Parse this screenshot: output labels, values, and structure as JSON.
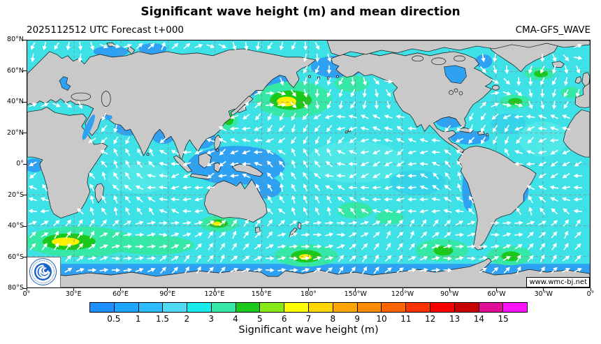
{
  "header": {
    "title": "Significant wave height (m) and mean direction",
    "forecast_label": "2025112512 UTC Forecast t+000",
    "model_label": "CMA-GFS_WAVE"
  },
  "map": {
    "lat_ticks": [
      "80°N",
      "60°N",
      "40°N",
      "20°N",
      "0°",
      "20°S",
      "40°S",
      "60°S",
      "80°S"
    ],
    "lon_ticks": [
      "0°",
      "30°E",
      "60°E",
      "90°E",
      "120°E",
      "150°E",
      "180°",
      "150°W",
      "120°W",
      "90°W",
      "60°W",
      "30°W",
      "0°"
    ],
    "watermark": "www.wmc-bj.net",
    "logo": "CMA China Meteorological Administration emblem",
    "land_color": "#c9c9c9",
    "ocean_base_color": "#3ee2e6",
    "gridline_style": "dashed gray every 20° lat / 30° lon",
    "arrow_meaning": "white arrows = mean wave direction"
  },
  "colorbar": {
    "label": "Significant wave height (m)",
    "ticks": [
      "0.5",
      "1",
      "1.5",
      "2",
      "3",
      "4",
      "5",
      "6",
      "7",
      "8",
      "9",
      "10",
      "11",
      "12",
      "13",
      "14",
      "15"
    ],
    "colors": [
      "#1e90ff",
      "#1ea5ff",
      "#2dbdff",
      "#4fd9f2",
      "#17ebeb",
      "#35e8a6",
      "#1dc81d",
      "#86e817",
      "#ffff00",
      "#ffd700",
      "#ffa500",
      "#ff8c00",
      "#ff6600",
      "#ff3300",
      "#fa0000",
      "#c80000",
      "#e00f96",
      "#ff14ff"
    ]
  },
  "chart_data": {
    "type": "heatmap",
    "subtype": "global significant wave height field with wave-direction vector overlay",
    "projection": "equirectangular world map, longitude 0° eastward to 0° (centered on 180°), latitude 80°N to 80°S",
    "title": "Significant wave height (m) and mean direction",
    "init_time": "2025112512 UTC",
    "forecast_step": "t+000",
    "model": "CMA-GFS_WAVE",
    "x_ticks": [
      "0°",
      "30°E",
      "60°E",
      "90°E",
      "120°E",
      "150°E",
      "180°",
      "150°W",
      "120°W",
      "90°W",
      "60°W",
      "30°W",
      "0°"
    ],
    "y_ticks": [
      "80°N",
      "60°N",
      "40°N",
      "20°N",
      "0°",
      "20°S",
      "40°S",
      "60°S",
      "80°S"
    ],
    "colorbar_ticks_m": [
      0.5,
      1,
      1.5,
      2,
      3,
      4,
      5,
      6,
      7,
      8,
      9,
      10,
      11,
      12,
      13,
      14,
      15
    ],
    "colorbar_label": "Significant wave height (m)",
    "vector_overlay": "white arrows show mean wave propagation direction over all oceans",
    "features": [
      {
        "region": "North Pacific storm ~42°N 175°E",
        "wave_height_m": "5-7 (yellow core in green field)"
      },
      {
        "region": "Gulf of Alaska ~52°N 150°W",
        "wave_height_m": "3-4"
      },
      {
        "region": "East China Sea ~28°N 125°E",
        "wave_height_m": "3-4"
      },
      {
        "region": "Southern Indian Ocean ~48°S 20-60°E",
        "wave_height_m": "5-7 (yellow core in broad green band)"
      },
      {
        "region": "Great Australian Bight ~38°S 127°E",
        "wave_height_m": "4-6"
      },
      {
        "region": "South Pacific south of New Zealand ~57°S 178°E",
        "wave_height_m": "5-7"
      },
      {
        "region": "Central South Pacific ~30°S 150°W",
        "wave_height_m": "3-4"
      },
      {
        "region": "Southeast Pacific ~52°S 110°W",
        "wave_height_m": "3-5"
      },
      {
        "region": "South Atlantic ~55°S 45°W",
        "wave_height_m": "3-5"
      },
      {
        "region": "North Atlantic ~42°N 48°W",
        "wave_height_m": "3-5"
      },
      {
        "region": "North Atlantic south of Iceland ~60°N 28°W",
        "wave_height_m": "3-5"
      },
      {
        "region": "Open tropical oceans",
        "wave_height_m": "1.5-2.5 (cyan)"
      },
      {
        "region": "Equatorial west Pacific, marginal seas, coastal zones",
        "wave_height_m": "0.5-1.5 (blue)"
      },
      {
        "region": "Antarctic coastal band",
        "wave_height_m": "0.5-1"
      }
    ]
  }
}
